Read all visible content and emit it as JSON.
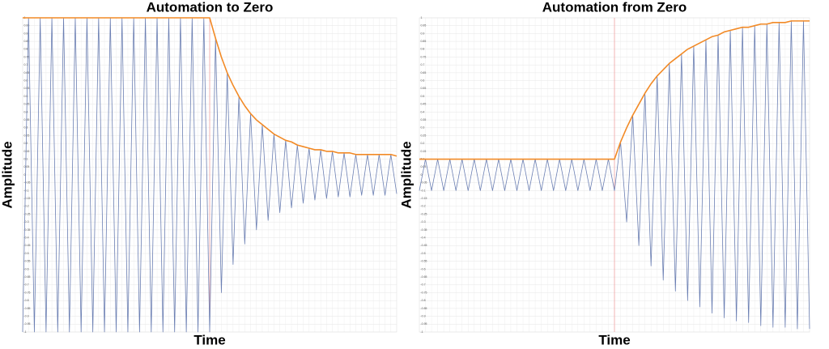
{
  "chart_data": [
    {
      "type": "line",
      "title": "Automation to Zero",
      "x_label": "Time",
      "y_label": "Amplitude",
      "x": [
        0,
        1,
        2,
        3,
        4,
        5,
        6,
        7,
        8,
        9,
        10,
        11,
        12,
        13,
        14,
        15,
        16,
        17,
        18,
        19,
        20,
        21,
        22,
        23,
        24,
        25,
        26,
        27,
        28,
        29,
        30,
        31,
        32,
        33,
        34,
        35,
        36,
        37,
        38,
        39,
        40,
        41,
        42,
        43,
        44,
        45,
        46,
        47,
        48,
        49,
        50,
        51,
        52,
        53,
        54,
        55,
        56,
        57,
        58,
        59,
        60,
        61,
        62,
        63,
        64
      ],
      "xlim": [
        0,
        64
      ],
      "ylim": [
        -1,
        1
      ],
      "yticks": [
        -1,
        -0.95,
        -0.9,
        -0.85,
        -0.8,
        -0.75,
        -0.7,
        -0.65,
        -0.6,
        -0.55,
        -0.5,
        -0.45,
        -0.4,
        -0.35,
        -0.3,
        -0.25,
        -0.2,
        -0.15,
        -0.1,
        -0.05,
        0,
        0.05,
        0.1,
        0.15,
        0.2,
        0.25,
        0.3,
        0.35,
        0.4,
        0.45,
        0.5,
        0.55,
        0.6,
        0.65,
        0.7,
        0.75,
        0.8,
        0.85,
        0.9,
        0.95,
        1
      ],
      "grid": true,
      "vline": 32,
      "vline_color": "#f2a3a3",
      "series": [
        {
          "color": "#6b7fb3",
          "values": [
            -1,
            1,
            -1,
            1,
            -1,
            1,
            -1,
            1,
            -1,
            1,
            -1,
            1,
            -1,
            1,
            -1,
            1,
            -1,
            1,
            -1,
            1,
            -1,
            1,
            -1,
            1,
            -1,
            1,
            -1,
            1,
            -1,
            1,
            -1,
            1,
            -1,
            0.87,
            -0.75,
            0.65,
            -0.57,
            0.5,
            -0.44,
            0.39,
            -0.35,
            0.32,
            -0.29,
            0.26,
            -0.24,
            0.22,
            -0.21,
            0.19,
            -0.18,
            0.17,
            -0.16,
            0.16,
            -0.15,
            0.15,
            -0.14,
            0.14,
            -0.14,
            0.13,
            -0.13,
            0.13,
            -0.13,
            0.13,
            -0.13,
            0.13,
            -0.12
          ]
        },
        {
          "color": "#f28a26",
          "values": [
            1,
            1,
            1,
            1,
            1,
            1,
            1,
            1,
            1,
            1,
            1,
            1,
            1,
            1,
            1,
            1,
            1,
            1,
            1,
            1,
            1,
            1,
            1,
            1,
            1,
            1,
            1,
            1,
            1,
            1,
            1,
            1,
            1,
            0.87,
            0.75,
            0.65,
            0.57,
            0.5,
            0.44,
            0.39,
            0.35,
            0.32,
            0.29,
            0.26,
            0.24,
            0.22,
            0.21,
            0.19,
            0.18,
            0.17,
            0.16,
            0.16,
            0.15,
            0.15,
            0.14,
            0.14,
            0.14,
            0.13,
            0.13,
            0.13,
            0.13,
            0.13,
            0.13,
            0.13,
            0.12
          ]
        }
      ]
    },
    {
      "type": "line",
      "title": "Automation from Zero",
      "x_label": "Time",
      "y_label": "Amplitude",
      "x": [
        0,
        1,
        2,
        3,
        4,
        5,
        6,
        7,
        8,
        9,
        10,
        11,
        12,
        13,
        14,
        15,
        16,
        17,
        18,
        19,
        20,
        21,
        22,
        23,
        24,
        25,
        26,
        27,
        28,
        29,
        30,
        31,
        32,
        33,
        34,
        35,
        36,
        37,
        38,
        39,
        40,
        41,
        42,
        43,
        44,
        45,
        46,
        47,
        48,
        49,
        50,
        51,
        52,
        53,
        54,
        55,
        56,
        57,
        58,
        59,
        60,
        61,
        62,
        63,
        64
      ],
      "xlim": [
        0,
        64
      ],
      "ylim": [
        -1,
        1
      ],
      "yticks": [
        -1,
        -0.95,
        -0.9,
        -0.85,
        -0.8,
        -0.75,
        -0.7,
        -0.65,
        -0.6,
        -0.55,
        -0.5,
        -0.45,
        -0.4,
        -0.35,
        -0.3,
        -0.25,
        -0.2,
        -0.15,
        -0.1,
        -0.05,
        0,
        0.05,
        0.1,
        0.15,
        0.2,
        0.25,
        0.3,
        0.35,
        0.4,
        0.45,
        0.5,
        0.55,
        0.6,
        0.65,
        0.7,
        0.75,
        0.8,
        0.85,
        0.9,
        0.95,
        1
      ],
      "grid": true,
      "vline": 32,
      "vline_color": "#f2a3a3",
      "series": [
        {
          "color": "#6b7fb3",
          "values": [
            -0.1,
            0.1,
            -0.1,
            0.1,
            -0.1,
            0.1,
            -0.1,
            0.1,
            -0.1,
            0.1,
            -0.1,
            0.1,
            -0.1,
            0.1,
            -0.1,
            0.1,
            -0.1,
            0.1,
            -0.1,
            0.1,
            -0.1,
            0.1,
            -0.1,
            0.1,
            -0.1,
            0.1,
            -0.1,
            0.1,
            -0.1,
            0.1,
            -0.1,
            0.1,
            -0.1,
            0.21,
            -0.3,
            0.38,
            -0.45,
            0.52,
            -0.58,
            0.63,
            -0.67,
            0.71,
            -0.74,
            0.77,
            -0.8,
            0.82,
            -0.84,
            0.86,
            -0.88,
            0.89,
            -0.91,
            0.92,
            -0.93,
            0.94,
            -0.94,
            0.95,
            -0.96,
            0.96,
            -0.97,
            0.97,
            -0.97,
            0.98,
            -0.98,
            0.98,
            -0.98
          ]
        },
        {
          "color": "#f28a26",
          "values": [
            0.1,
            0.1,
            0.1,
            0.1,
            0.1,
            0.1,
            0.1,
            0.1,
            0.1,
            0.1,
            0.1,
            0.1,
            0.1,
            0.1,
            0.1,
            0.1,
            0.1,
            0.1,
            0.1,
            0.1,
            0.1,
            0.1,
            0.1,
            0.1,
            0.1,
            0.1,
            0.1,
            0.1,
            0.1,
            0.1,
            0.1,
            0.1,
            0.1,
            0.21,
            0.3,
            0.38,
            0.45,
            0.52,
            0.58,
            0.63,
            0.67,
            0.71,
            0.74,
            0.77,
            0.8,
            0.82,
            0.84,
            0.86,
            0.88,
            0.89,
            0.91,
            0.92,
            0.93,
            0.94,
            0.94,
            0.95,
            0.96,
            0.96,
            0.97,
            0.97,
            0.97,
            0.98,
            0.98,
            0.98,
            0.98
          ]
        }
      ]
    }
  ]
}
